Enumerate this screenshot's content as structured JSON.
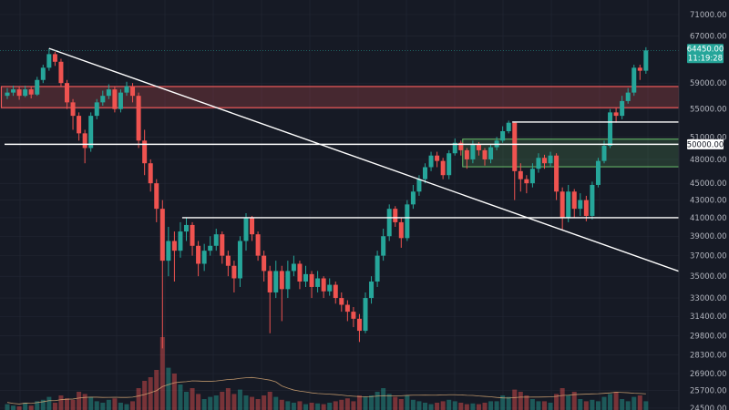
{
  "chart_data": {
    "type": "candlestick",
    "y_scale": "log",
    "ylim": [
      24500,
      71000
    ],
    "grid": true,
    "colors": {
      "up": "#26a69a",
      "down": "#ef5350",
      "background": "#161a25",
      "grid": "#232735",
      "volume_ma": "#e3b27a",
      "resistance_zone": "#f05a5a",
      "support_zone": "#6cc26c",
      "lines": "#ffffff",
      "last_price_label": "#26a69a"
    },
    "y_ticks": [
      "71000.00",
      "67000.00",
      "59000.00",
      "55000.00",
      "51000.00",
      "48000.00",
      "45000.00",
      "43000.00",
      "41000.00",
      "39000.00",
      "37000.00",
      "35000.00",
      "33000.00",
      "31400.00",
      "29800.00",
      "28300.00",
      "26900.00",
      "25700.00",
      "24500.00"
    ],
    "last_price": {
      "price": 64450,
      "label": "64450.00",
      "countdown": "11:19:28"
    },
    "level_label": {
      "price": 50000,
      "label": "50000.00"
    },
    "close": [
      57500,
      58000,
      57000,
      58000,
      57200,
      59500,
      61500,
      63800,
      62500,
      59000,
      56000,
      54000,
      51500,
      49500,
      54000,
      56000,
      57000,
      58000,
      55000,
      57500,
      58500,
      57000,
      50500,
      47500,
      45000,
      42000,
      36500,
      38500,
      37500,
      39500,
      40200,
      38000,
      36200,
      37500,
      38000,
      39200,
      37000,
      36000,
      34800,
      38500,
      41000,
      39200,
      37000,
      35500,
      33500,
      35500,
      33800,
      35500,
      36200,
      34500,
      35200,
      34000,
      34800,
      33600,
      34200,
      33000,
      32400,
      31800,
      31200,
      30200,
      33000,
      34500,
      37000,
      39000,
      42000,
      40500,
      38800,
      42500,
      44000,
      45500,
      47000,
      48500,
      47800,
      46000,
      48800,
      50200,
      49200,
      48000,
      50000,
      49200,
      48000,
      49600,
      50500,
      51800,
      53000,
      46500,
      45500,
      45000,
      46800,
      48200,
      47500,
      48500,
      44000,
      41000,
      44000,
      42000,
      43000,
      41200,
      44800,
      47800,
      49800,
      54500,
      54000,
      56200,
      57500,
      61500,
      61000,
      64450
    ],
    "open_first": 57000,
    "high": [
      58200,
      58600,
      58500,
      58600,
      58400,
      60000,
      62000,
      64800,
      64200,
      63000,
      59500,
      56500,
      54500,
      52000,
      54500,
      56500,
      57800,
      58800,
      58500,
      58000,
      59200,
      59000,
      57500,
      52000,
      48000,
      45500,
      43000,
      40000,
      39500,
      40500,
      41000,
      40500,
      38500,
      38200,
      39000,
      39800,
      39500,
      37500,
      36500,
      39000,
      41500,
      41200,
      39500,
      37500,
      36000,
      36500,
      36000,
      36500,
      37000,
      36500,
      36000,
      35500,
      35500,
      35000,
      34800,
      34500,
      33500,
      32800,
      32200,
      31600,
      33500,
      35000,
      37500,
      39800,
      42500,
      42300,
      41000,
      43000,
      44800,
      46000,
      47500,
      49000,
      49000,
      48200,
      49200,
      50800,
      50500,
      49500,
      50500,
      50300,
      49500,
      50000,
      51000,
      52500,
      53300,
      53000,
      47500,
      46000,
      47500,
      48800,
      48600,
      49000,
      48800,
      44500,
      44800,
      44300,
      43800,
      43500,
      45200,
      48200,
      50500,
      55000,
      55200,
      57000,
      58200,
      62000,
      62000,
      65000
    ],
    "low": [
      56500,
      57000,
      56400,
      56800,
      56600,
      57000,
      59000,
      61000,
      61800,
      58500,
      55000,
      52000,
      50500,
      47500,
      49000,
      53500,
      55500,
      56500,
      54500,
      54500,
      57000,
      56000,
      49500,
      46000,
      44000,
      40500,
      28800,
      35000,
      34500,
      36800,
      38500,
      37000,
      35000,
      35500,
      37000,
      37500,
      36200,
      35000,
      33500,
      34000,
      37500,
      38500,
      36500,
      34500,
      30000,
      33000,
      31000,
      33000,
      35000,
      33800,
      34000,
      33000,
      33500,
      33000,
      33200,
      32500,
      31800,
      31000,
      30500,
      29300,
      30000,
      32500,
      34000,
      36500,
      38500,
      40000,
      37800,
      38500,
      42000,
      43500,
      45000,
      46500,
      47000,
      45500,
      45500,
      48500,
      48500,
      46800,
      47500,
      48500,
      47200,
      47500,
      49200,
      50200,
      51500,
      43000,
      44000,
      43800,
      44500,
      46300,
      46800,
      47000,
      43000,
      39600,
      40500,
      41000,
      41200,
      40600,
      40800,
      44500,
      47500,
      49500,
      53000,
      53500,
      55800,
      57000,
      59500,
      60500
    ],
    "volume": [
      8,
      6,
      5,
      10,
      6,
      12,
      14,
      18,
      10,
      20,
      16,
      14,
      25,
      22,
      18,
      12,
      10,
      14,
      16,
      10,
      8,
      12,
      30,
      40,
      45,
      55,
      100,
      58,
      50,
      35,
      25,
      30,
      22,
      15,
      18,
      20,
      25,
      30,
      22,
      28,
      20,
      18,
      15,
      20,
      25,
      18,
      14,
      12,
      10,
      12,
      8,
      10,
      9,
      8,
      10,
      12,
      14,
      16,
      12,
      20,
      18,
      20,
      25,
      30,
      22,
      18,
      15,
      20,
      14,
      12,
      10,
      8,
      10,
      12,
      14,
      12,
      10,
      8,
      9,
      8,
      10,
      12,
      12,
      20,
      18,
      28,
      25,
      20,
      15,
      12,
      12,
      10,
      22,
      30,
      20,
      25,
      15,
      12,
      14,
      12,
      18,
      22,
      25,
      15,
      12,
      18,
      20,
      12
    ],
    "drawings": {
      "trendline": {
        "from": {
          "bar": 7,
          "price": 64800
        },
        "to": {
          "bar": 121.5,
          "price": 33700
        }
      },
      "horizontal_lines": [
        {
          "price": 50000,
          "from_bar": -1
        },
        {
          "price": 41000,
          "from_bar": 29.3
        },
        {
          "price": 53100,
          "from_bar": 84.6
        }
      ],
      "resistance_zone": {
        "from_bar": -1,
        "top": 58450,
        "bottom": 55200
      },
      "support_zone": {
        "from_bar": 76.3,
        "top": 50700,
        "bottom": 47050
      }
    }
  }
}
